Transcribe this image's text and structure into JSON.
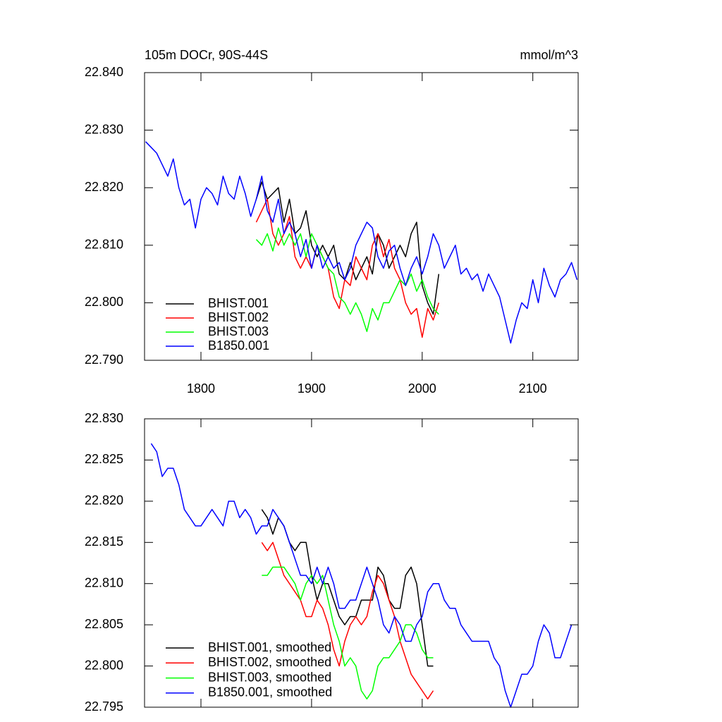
{
  "chart_data": [
    {
      "type": "line",
      "title": "105m DOCr, 90S-44S",
      "units": "mmol/m^3",
      "xlim": [
        1749,
        2141
      ],
      "xticks": [
        1800,
        1900,
        2000,
        2100
      ],
      "ylim": [
        22.79,
        22.84
      ],
      "yticks": [
        {
          "value": 22.79,
          "label": "22.790"
        },
        {
          "value": 22.8,
          "label": "22.800"
        },
        {
          "value": 22.81,
          "label": "22.810"
        },
        {
          "value": 22.82,
          "label": "22.820"
        },
        {
          "value": 22.83,
          "label": "22.830"
        },
        {
          "value": 22.84,
          "label": "22.840"
        }
      ],
      "legend": "lower left",
      "series": [
        {
          "name": "BHIST.001",
          "color": "#000000",
          "x": [
            1850,
            1855,
            1860,
            1865,
            1870,
            1875,
            1880,
            1885,
            1890,
            1895,
            1900,
            1905,
            1910,
            1915,
            1920,
            1925,
            1930,
            1935,
            1940,
            1945,
            1950,
            1955,
            1960,
            1965,
            1970,
            1975,
            1980,
            1985,
            1990,
            1995,
            2000,
            2005,
            2010,
            2015
          ],
          "values": [
            22.818,
            22.821,
            22.818,
            22.819,
            22.82,
            22.814,
            22.818,
            22.812,
            22.813,
            22.816,
            22.81,
            22.808,
            22.81,
            22.808,
            22.81,
            22.805,
            22.804,
            22.807,
            22.804,
            22.806,
            22.808,
            22.805,
            22.812,
            22.81,
            22.806,
            22.808,
            22.81,
            22.808,
            22.812,
            22.814,
            22.803,
            22.8,
            22.798,
            22.805
          ]
        },
        {
          "name": "BHIST.002",
          "color": "#ff0000",
          "x": [
            1850,
            1855,
            1860,
            1865,
            1870,
            1875,
            1880,
            1885,
            1890,
            1895,
            1900,
            1905,
            1910,
            1915,
            1920,
            1925,
            1930,
            1935,
            1940,
            1945,
            1950,
            1955,
            1960,
            1965,
            1970,
            1975,
            1980,
            1985,
            1990,
            1995,
            2000,
            2005,
            2010,
            2015
          ],
          "values": [
            22.814,
            22.816,
            22.818,
            22.812,
            22.81,
            22.812,
            22.815,
            22.808,
            22.806,
            22.808,
            22.806,
            22.81,
            22.808,
            22.806,
            22.801,
            22.799,
            22.804,
            22.803,
            22.808,
            22.806,
            22.804,
            22.81,
            22.812,
            22.808,
            22.811,
            22.806,
            22.804,
            22.8,
            22.798,
            22.799,
            22.794,
            22.799,
            22.797,
            22.8
          ]
        },
        {
          "name": "BHIST.003",
          "color": "#00ff00",
          "x": [
            1850,
            1855,
            1860,
            1865,
            1870,
            1875,
            1880,
            1885,
            1890,
            1895,
            1900,
            1905,
            1910,
            1915,
            1920,
            1925,
            1930,
            1935,
            1940,
            1945,
            1950,
            1955,
            1960,
            1965,
            1970,
            1975,
            1980,
            1985,
            1990,
            1995,
            2000,
            2005,
            2010,
            2015
          ],
          "values": [
            22.811,
            22.81,
            22.812,
            22.809,
            22.813,
            22.81,
            22.812,
            22.81,
            22.812,
            22.808,
            22.812,
            22.81,
            22.808,
            22.806,
            22.805,
            22.801,
            22.8,
            22.798,
            22.8,
            22.798,
            22.795,
            22.799,
            22.797,
            22.8,
            22.8,
            22.802,
            22.804,
            22.803,
            22.805,
            22.802,
            22.804,
            22.801,
            22.799,
            22.798
          ]
        },
        {
          "name": "B1850.001",
          "color": "#0000ff",
          "x": [
            1750,
            1755,
            1760,
            1765,
            1770,
            1775,
            1780,
            1785,
            1790,
            1795,
            1800,
            1805,
            1810,
            1815,
            1820,
            1825,
            1830,
            1835,
            1840,
            1845,
            1850,
            1855,
            1860,
            1865,
            1870,
            1875,
            1880,
            1885,
            1890,
            1895,
            1900,
            1905,
            1910,
            1915,
            1920,
            1925,
            1930,
            1935,
            1940,
            1945,
            1950,
            1955,
            1960,
            1965,
            1970,
            1975,
            1980,
            1985,
            1990,
            1995,
            2000,
            2005,
            2010,
            2015,
            2020,
            2025,
            2030,
            2035,
            2040,
            2045,
            2050,
            2055,
            2060,
            2065,
            2070,
            2075,
            2080,
            2085,
            2090,
            2095,
            2100,
            2105,
            2110,
            2115,
            2120,
            2125,
            2130,
            2135,
            2140
          ],
          "values": [
            22.828,
            22.827,
            22.826,
            22.824,
            22.822,
            22.825,
            22.82,
            22.817,
            22.818,
            22.813,
            22.818,
            22.82,
            22.819,
            22.817,
            22.822,
            22.819,
            22.818,
            22.822,
            22.819,
            22.815,
            22.818,
            22.822,
            22.816,
            22.814,
            22.818,
            22.812,
            22.814,
            22.812,
            22.808,
            22.811,
            22.806,
            22.81,
            22.806,
            22.808,
            22.806,
            22.807,
            22.804,
            22.806,
            22.81,
            22.812,
            22.814,
            22.813,
            22.808,
            22.806,
            22.809,
            22.81,
            22.806,
            22.803,
            22.806,
            22.808,
            22.805,
            22.808,
            22.812,
            22.81,
            22.806,
            22.808,
            22.81,
            22.805,
            22.806,
            22.804,
            22.805,
            22.802,
            22.805,
            22.803,
            22.801,
            22.797,
            22.793,
            22.797,
            22.8,
            22.799,
            22.804,
            22.8,
            22.806,
            22.803,
            22.801,
            22.804,
            22.805,
            22.807,
            22.804
          ]
        }
      ]
    },
    {
      "type": "line",
      "xlim": [
        1749,
        2141
      ],
      "xticks": [
        1800,
        1900,
        2000,
        2100
      ],
      "ylim": [
        22.795,
        22.83
      ],
      "yticks": [
        {
          "value": 22.795,
          "label": "22.795"
        },
        {
          "value": 22.8,
          "label": "22.800"
        },
        {
          "value": 22.805,
          "label": "22.805"
        },
        {
          "value": 22.81,
          "label": "22.810"
        },
        {
          "value": 22.815,
          "label": "22.815"
        },
        {
          "value": 22.82,
          "label": "22.820"
        },
        {
          "value": 22.825,
          "label": "22.825"
        },
        {
          "value": 22.83,
          "label": "22.830"
        }
      ],
      "legend": "lower left",
      "series": [
        {
          "name": "BHIST.001, smoothed",
          "color": "#000000",
          "x": [
            1855,
            1860,
            1865,
            1870,
            1875,
            1880,
            1885,
            1890,
            1895,
            1900,
            1905,
            1910,
            1915,
            1920,
            1925,
            1930,
            1935,
            1940,
            1945,
            1950,
            1955,
            1960,
            1965,
            1970,
            1975,
            1980,
            1985,
            1990,
            1995,
            2000,
            2005,
            2010
          ],
          "values": [
            22.819,
            22.818,
            22.816,
            22.818,
            22.817,
            22.815,
            22.814,
            22.815,
            22.815,
            22.811,
            22.808,
            22.81,
            22.81,
            22.808,
            22.806,
            22.805,
            22.806,
            22.806,
            22.808,
            22.808,
            22.808,
            22.812,
            22.811,
            22.808,
            22.807,
            22.807,
            22.811,
            22.812,
            22.81,
            22.805,
            22.8,
            22.8
          ]
        },
        {
          "name": "BHIST.002, smoothed",
          "color": "#ff0000",
          "x": [
            1855,
            1860,
            1865,
            1870,
            1875,
            1880,
            1885,
            1890,
            1895,
            1900,
            1905,
            1910,
            1915,
            1920,
            1925,
            1930,
            1935,
            1940,
            1945,
            1950,
            1955,
            1960,
            1965,
            1970,
            1975,
            1980,
            1985,
            1990,
            1995,
            2000,
            2005,
            2010
          ],
          "values": [
            22.815,
            22.814,
            22.815,
            22.813,
            22.811,
            22.81,
            22.809,
            22.808,
            22.806,
            22.806,
            22.808,
            22.807,
            22.805,
            22.802,
            22.8,
            22.803,
            22.805,
            22.806,
            22.805,
            22.806,
            22.809,
            22.811,
            22.81,
            22.808,
            22.806,
            22.803,
            22.801,
            22.799,
            22.798,
            22.797,
            22.796,
            22.797
          ]
        },
        {
          "name": "BHIST.003, smoothed",
          "color": "#00ff00",
          "x": [
            1855,
            1860,
            1865,
            1870,
            1875,
            1880,
            1885,
            1890,
            1895,
            1900,
            1905,
            1910,
            1915,
            1920,
            1925,
            1930,
            1935,
            1940,
            1945,
            1950,
            1955,
            1960,
            1965,
            1970,
            1975,
            1980,
            1985,
            1990,
            1995,
            2000,
            2005,
            2010
          ],
          "values": [
            22.811,
            22.811,
            22.812,
            22.812,
            22.812,
            22.811,
            22.81,
            22.808,
            22.81,
            22.811,
            22.81,
            22.811,
            22.808,
            22.805,
            22.803,
            22.8,
            22.801,
            22.8,
            22.797,
            22.796,
            22.797,
            22.8,
            22.801,
            22.801,
            22.802,
            22.803,
            22.805,
            22.805,
            22.804,
            22.802,
            22.801,
            22.801
          ]
        },
        {
          "name": "B1850.001, smoothed",
          "color": "#0000ff",
          "x": [
            1755,
            1760,
            1765,
            1770,
            1775,
            1780,
            1785,
            1790,
            1795,
            1800,
            1805,
            1810,
            1815,
            1820,
            1825,
            1830,
            1835,
            1840,
            1845,
            1850,
            1855,
            1860,
            1865,
            1870,
            1875,
            1880,
            1885,
            1890,
            1895,
            1900,
            1905,
            1910,
            1915,
            1920,
            1925,
            1930,
            1935,
            1940,
            1945,
            1950,
            1955,
            1960,
            1965,
            1970,
            1975,
            1980,
            1985,
            1990,
            1995,
            2000,
            2005,
            2010,
            2015,
            2020,
            2025,
            2030,
            2035,
            2040,
            2045,
            2050,
            2055,
            2060,
            2065,
            2070,
            2075,
            2080,
            2085,
            2090,
            2095,
            2100,
            2105,
            2110,
            2115,
            2120,
            2125,
            2130,
            2135
          ],
          "values": [
            22.827,
            22.826,
            22.823,
            22.824,
            22.824,
            22.822,
            22.819,
            22.818,
            22.817,
            22.817,
            22.818,
            22.819,
            22.818,
            22.817,
            22.82,
            22.82,
            22.818,
            22.819,
            22.818,
            22.816,
            22.817,
            22.817,
            22.819,
            22.818,
            22.817,
            22.815,
            22.813,
            22.811,
            22.811,
            22.81,
            22.812,
            22.81,
            22.812,
            22.81,
            22.807,
            22.807,
            22.808,
            22.808,
            22.81,
            22.812,
            22.81,
            22.808,
            22.805,
            22.804,
            22.806,
            22.805,
            22.803,
            22.803,
            22.805,
            22.806,
            22.809,
            22.81,
            22.81,
            22.808,
            22.807,
            22.807,
            22.805,
            22.804,
            22.803,
            22.803,
            22.803,
            22.803,
            22.801,
            22.8,
            22.797,
            22.795,
            22.797,
            22.799,
            22.799,
            22.8,
            22.803,
            22.805,
            22.804,
            22.801,
            22.801,
            22.803,
            22.805
          ]
        }
      ]
    }
  ]
}
